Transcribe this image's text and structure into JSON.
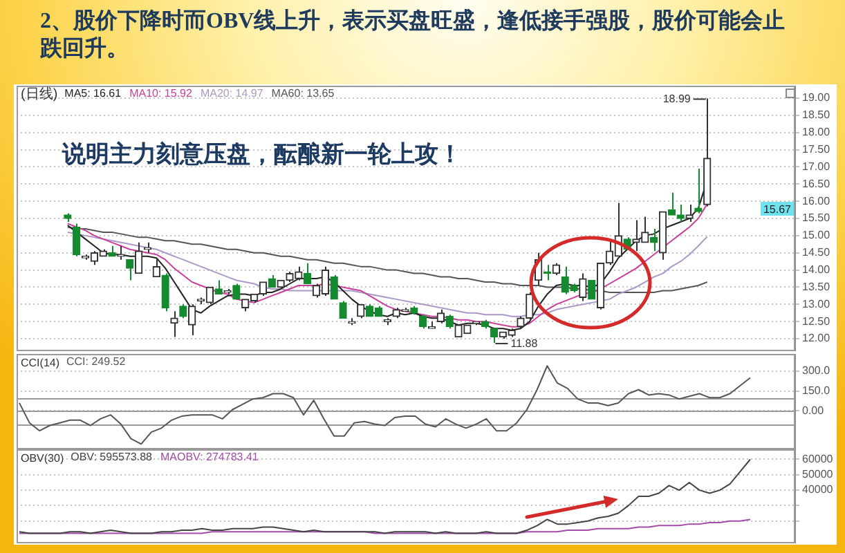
{
  "chart_data": [
    {
      "type": "candlestick",
      "title": "2、股价下降时而OBV线上升，表示买盘旺盛，逢低接手强股，股价可能会止跌回升。",
      "subtitle": "(日线)",
      "categories": [
        null,
        null,
        null,
        null,
        null,
        null,
        null,
        null,
        null,
        null,
        null,
        null,
        null,
        null,
        null,
        null,
        null,
        null,
        null,
        null,
        null,
        null,
        null,
        null,
        null,
        null,
        null,
        null,
        null,
        null,
        null,
        null,
        null,
        null,
        null,
        null,
        null,
        null,
        null,
        null,
        null,
        null,
        null,
        null,
        null,
        null,
        null,
        null,
        null,
        null,
        null,
        null,
        null,
        null,
        null,
        null,
        null,
        null,
        null,
        null,
        null,
        null,
        null,
        null,
        null,
        null,
        null,
        null,
        null,
        null,
        null,
        null,
        null
      ],
      "ohlc": [
        [
          15.6,
          15.65,
          15.4,
          15.5
        ],
        [
          15.25,
          15.35,
          14.4,
          14.45
        ],
        [
          14.35,
          14.45,
          14.3,
          14.4
        ],
        [
          14.25,
          14.55,
          14.15,
          14.5
        ],
        [
          14.4,
          14.6,
          14.4,
          14.55
        ],
        [
          14.5,
          14.7,
          14.4,
          14.4
        ],
        [
          14.4,
          14.7,
          14.3,
          14.45
        ],
        [
          14.3,
          14.3,
          13.7,
          14.05
        ],
        [
          13.9,
          14.8,
          13.9,
          14.55
        ],
        [
          14.6,
          14.8,
          14.5,
          14.65
        ],
        [
          13.8,
          14.35,
          13.8,
          14.1
        ],
        [
          13.85,
          13.9,
          12.8,
          12.9
        ],
        [
          12.45,
          12.8,
          12.05,
          12.6
        ],
        [
          12.95,
          13,
          12.6,
          12.65
        ],
        [
          12.4,
          13,
          12.1,
          12.95
        ],
        [
          13.1,
          13.2,
          13,
          13.15
        ],
        [
          13.05,
          13.5,
          13,
          13.5
        ],
        [
          13.45,
          13.7,
          13.3,
          13.3
        ],
        [
          13.35,
          13.45,
          13.3,
          13.4
        ],
        [
          13.55,
          13.6,
          13.15,
          13.15
        ],
        [
          12.9,
          13.15,
          12.8,
          13.15
        ],
        [
          13.1,
          13.3,
          13.05,
          13.3
        ],
        [
          13.3,
          13.65,
          13.25,
          13.65
        ],
        [
          13.75,
          13.85,
          13.5,
          13.5
        ],
        [
          13.5,
          13.7,
          13.45,
          13.7
        ],
        [
          13.7,
          13.95,
          13.65,
          13.9
        ],
        [
          13.75,
          14.1,
          13.7,
          13.95
        ],
        [
          13.9,
          14.2,
          13.6,
          13.6
        ],
        [
          13.25,
          13.6,
          13.2,
          13.55
        ],
        [
          13.3,
          14.1,
          13.25,
          14
        ],
        [
          13.8,
          13.85,
          13.15,
          13.15
        ],
        [
          13.05,
          13.1,
          12.6,
          12.6
        ],
        [
          12.45,
          12.6,
          12.4,
          12.5
        ],
        [
          12.65,
          13,
          12.6,
          13
        ],
        [
          12.95,
          13,
          12.65,
          12.65
        ],
        [
          12.9,
          12.95,
          12.65,
          12.65
        ],
        [
          12.5,
          12.6,
          12.4,
          12.55
        ],
        [
          12.65,
          12.9,
          12.6,
          12.85
        ],
        [
          12.8,
          12.9,
          12.8,
          12.85
        ],
        [
          12.9,
          12.95,
          12.7,
          12.75
        ],
        [
          12.65,
          12.7,
          12.3,
          12.35
        ],
        [
          12.3,
          12.5,
          12.3,
          12.35
        ],
        [
          12.5,
          12.85,
          12.45,
          12.75
        ],
        [
          12.65,
          12.7,
          12.3,
          12.35
        ],
        [
          12.05,
          12.4,
          12.05,
          12.4
        ],
        [
          12.15,
          12.4,
          12.15,
          12.4
        ],
        [
          12.45,
          12.5,
          12.4,
          12.5
        ],
        [
          12.5,
          12.55,
          12.3,
          12.35
        ],
        [
          12.3,
          12.3,
          11.88,
          12.05
        ],
        [
          12.05,
          12.2,
          12,
          12.2
        ],
        [
          12.1,
          12.3,
          12.05,
          12.25
        ],
        [
          12.35,
          12.65,
          12.3,
          12.6
        ],
        [
          12.6,
          13.35,
          12.55,
          13.3
        ],
        [
          13.7,
          14.5,
          13.55,
          14.3
        ],
        [
          13.95,
          14.15,
          13.7,
          13.9
        ],
        [
          13.9,
          14.2,
          13.85,
          14.15
        ],
        [
          13.8,
          14.1,
          13.3,
          13.35
        ],
        [
          13.55,
          13.6,
          13.35,
          13.4
        ],
        [
          13.2,
          13.9,
          13.1,
          13.75
        ],
        [
          13.7,
          13.7,
          13.15,
          13.15
        ],
        [
          12.9,
          14.2,
          12.85,
          14.2
        ],
        [
          14.2,
          14.85,
          14.15,
          14.55
        ],
        [
          14.4,
          15.95,
          14.4,
          15
        ],
        [
          14.9,
          14.95,
          14.6,
          14.6
        ],
        [
          14.8,
          15.45,
          14.55,
          14.9
        ],
        [
          14.8,
          15.55,
          14.8,
          15.1
        ],
        [
          14.95,
          15.2,
          14.55,
          14.8
        ],
        [
          14.5,
          15.7,
          14.3,
          15.7
        ],
        [
          15.75,
          16.25,
          15.6,
          15.6
        ],
        [
          15.6,
          15.9,
          15.4,
          15.5
        ],
        [
          15.5,
          15.9,
          15.4,
          15.6
        ],
        [
          15.8,
          16.95,
          15.65,
          15.7
        ],
        [
          15.9,
          18.99,
          15.85,
          17.25
        ]
      ],
      "colors": [
        "#158a2e",
        "#158a2e",
        "#333333",
        "#333333",
        "#333333",
        "#158a2e",
        "#333333",
        "#158a2e",
        "#333333",
        "#333333",
        "#333333",
        "#158a2e",
        "#333333",
        "#158a2e",
        "#333333",
        "#333333",
        "#333333",
        "#158a2e",
        "#333333",
        "#158a2e",
        "#333333",
        "#333333",
        "#333333",
        "#158a2e",
        "#333333",
        "#333333",
        "#333333",
        "#158a2e",
        "#333333",
        "#333333",
        "#158a2e",
        "#158a2e",
        "#333333",
        "#333333",
        "#158a2e",
        "#158a2e",
        "#333333",
        "#333333",
        "#333333",
        "#158a2e",
        "#158a2e",
        "#333333",
        "#333333",
        "#158a2e",
        "#333333",
        "#333333",
        "#333333",
        "#158a2e",
        "#158a2e",
        "#333333",
        "#333333",
        "#333333",
        "#333333",
        "#333333",
        "#158a2e",
        "#333333",
        "#158a2e",
        "#158a2e",
        "#333333",
        "#158a2e",
        "#333333",
        "#333333",
        "#333333",
        "#158a2e",
        "#333333",
        "#333333",
        "#158a2e",
        "#333333",
        "#158a2e",
        "#158a2e",
        "#333333",
        "#158a2e",
        "#333333"
      ],
      "series": [
        {
          "type": "line",
          "name": "MA5: 16.61",
          "color": "#222222",
          "values": [
            15.3,
            15.1,
            14.9,
            14.7,
            14.5,
            14.45,
            14.45,
            14.4,
            14.4,
            14.4,
            14.35,
            14.05,
            13.65,
            13.25,
            12.85,
            12.75,
            12.95,
            13.1,
            13.25,
            13.3,
            13.3,
            13.25,
            13.35,
            13.35,
            13.45,
            13.6,
            13.75,
            13.75,
            13.75,
            13.8,
            13.65,
            13.4,
            13.15,
            12.95,
            12.8,
            12.7,
            12.65,
            12.75,
            12.7,
            12.75,
            12.65,
            12.6,
            12.6,
            12.5,
            12.4,
            12.45,
            12.45,
            12.4,
            12.3,
            12.3,
            12.25,
            12.3,
            12.5,
            12.95,
            13.3,
            13.55,
            13.6,
            13.55,
            13.55,
            13.5,
            13.6,
            13.95,
            14.35,
            14.6,
            14.85,
            15,
            15.05,
            15.2,
            15.3,
            15.4,
            15.5,
            15.8,
            16.61
          ]
        },
        {
          "type": "line",
          "name": "MA10: 15.92",
          "color": "#c8409c",
          "values": [
            15.35,
            15.25,
            15.15,
            15,
            14.9,
            14.8,
            14.7,
            14.6,
            14.55,
            14.5,
            14.45,
            14.3,
            14.05,
            13.85,
            13.65,
            13.55,
            13.45,
            13.35,
            13.3,
            13.15,
            13.1,
            13.05,
            13.15,
            13.25,
            13.35,
            13.45,
            13.55,
            13.55,
            13.55,
            13.6,
            13.55,
            13.5,
            13.45,
            13.4,
            13.25,
            13.1,
            12.95,
            12.85,
            12.8,
            12.75,
            12.7,
            12.65,
            12.65,
            12.6,
            12.55,
            12.55,
            12.5,
            12.5,
            12.45,
            12.4,
            12.35,
            12.35,
            12.45,
            12.65,
            12.85,
            13,
            13.1,
            13.2,
            13.3,
            13.35,
            13.45,
            13.6,
            13.75,
            13.9,
            14.05,
            14.25,
            14.45,
            14.65,
            14.85,
            15.05,
            15.25,
            15.5,
            15.92
          ]
        },
        {
          "type": "line",
          "name": "MA20: 14.97",
          "color": "#ab98c8",
          "values": [
            15.1,
            15.05,
            15,
            14.95,
            14.9,
            14.85,
            14.8,
            14.75,
            14.7,
            14.65,
            14.6,
            14.5,
            14.4,
            14.3,
            14.2,
            14.1,
            14,
            13.9,
            13.8,
            13.7,
            13.65,
            13.6,
            13.5,
            13.45,
            13.45,
            13.4,
            13.4,
            13.4,
            13.4,
            13.4,
            13.4,
            13.4,
            13.4,
            13.35,
            13.3,
            13.25,
            13.2,
            13.15,
            13.1,
            13.05,
            13,
            12.95,
            12.9,
            12.85,
            12.8,
            12.75,
            12.75,
            12.7,
            12.7,
            12.7,
            12.65,
            12.65,
            12.7,
            12.7,
            12.75,
            12.85,
            12.9,
            12.95,
            13,
            13.05,
            13.1,
            13.15,
            13.3,
            13.4,
            13.5,
            13.65,
            13.8,
            13.9,
            14.1,
            14.25,
            14.45,
            14.7,
            14.97
          ]
        },
        {
          "type": "line",
          "name": "MA60: 13.65",
          "color": "#555555",
          "values": [
            15.25,
            15.2,
            15.2,
            15.15,
            15.1,
            15.1,
            15.05,
            15,
            14.95,
            14.95,
            14.9,
            14.85,
            14.85,
            14.8,
            14.75,
            14.75,
            14.7,
            14.65,
            14.6,
            14.6,
            14.55,
            14.5,
            14.5,
            14.45,
            14.4,
            14.4,
            14.35,
            14.3,
            14.3,
            14.25,
            14.2,
            14.2,
            14.15,
            14.1,
            14.1,
            14.05,
            14,
            14,
            13.95,
            13.9,
            13.9,
            13.85,
            13.8,
            13.8,
            13.75,
            13.75,
            13.7,
            13.65,
            13.65,
            13.6,
            13.6,
            13.55,
            13.55,
            13.55,
            13.5,
            13.5,
            13.5,
            13.45,
            13.45,
            13.4,
            13.4,
            13.35,
            13.35,
            13.35,
            13.35,
            13.35,
            13.35,
            13.4,
            13.4,
            13.45,
            13.5,
            13.55,
            13.65
          ]
        }
      ],
      "ylim": [
        11.64,
        19.36
      ],
      "yticks": [
        {
          "value": 12,
          "label": "12.00"
        },
        {
          "value": 12.5,
          "label": "12.50"
        },
        {
          "value": 13,
          "label": "13.00"
        },
        {
          "value": 13.5,
          "label": "13.50"
        },
        {
          "value": 14,
          "label": "14.00"
        },
        {
          "value": 14.5,
          "label": "14.50"
        },
        {
          "value": 15,
          "label": "15.00"
        },
        {
          "value": 15.5,
          "label": "15.50"
        },
        {
          "value": 16,
          "label": "16.00"
        },
        {
          "value": 16.5,
          "label": "16.50"
        },
        {
          "value": 17,
          "label": "17.00"
        },
        {
          "value": 17.5,
          "label": "17.50"
        },
        {
          "value": 18,
          "label": "18.00"
        },
        {
          "value": 18.5,
          "label": "18.50"
        },
        {
          "value": 19,
          "label": "19.00"
        }
      ],
      "grid": "y",
      "legend": "top left",
      "tick_labels": "y",
      "annotations": [
        "说明主力刻意压盘，酝酿新一轮上攻！",
        "18.99",
        "11.88",
        "15.67"
      ]
    },
    {
      "type": "line",
      "title": "CCI(14)",
      "categories": [
        null,
        null,
        null,
        null,
        null,
        null,
        null,
        null,
        null,
        null,
        null,
        null,
        null,
        null,
        null,
        null,
        null,
        null,
        null,
        null,
        null,
        null,
        null,
        null,
        null,
        null,
        null,
        null,
        null,
        null,
        null,
        null,
        null,
        null,
        null,
        null,
        null,
        null,
        null,
        null,
        null,
        null,
        null,
        null,
        null,
        null,
        null,
        null,
        null,
        null,
        null,
        null,
        null,
        null,
        null,
        null,
        null,
        null,
        null,
        null,
        null,
        null,
        null,
        null,
        null,
        null,
        null,
        null,
        null,
        null,
        null,
        null,
        null
      ],
      "series": [
        {
          "name": "CCI: 249.52",
          "color": "#555555",
          "values": [
            60,
            -90,
            -150,
            -110,
            -90,
            -70,
            -70,
            -110,
            -60,
            -30,
            -100,
            -210,
            -250,
            -160,
            -130,
            -70,
            -40,
            -30,
            -30,
            -30,
            -60,
            10,
            50,
            90,
            100,
            130,
            130,
            100,
            -30,
            80,
            -60,
            -190,
            -190,
            -90,
            -80,
            -100,
            -110,
            -50,
            -40,
            -40,
            -100,
            -120,
            -60,
            -100,
            -130,
            -100,
            -60,
            -150,
            -150,
            -90,
            10,
            160,
            340,
            210,
            170,
            90,
            60,
            60,
            40,
            60,
            130,
            160,
            120,
            130,
            120,
            90,
            110,
            130,
            100,
            100,
            130,
            190,
            250
          ]
        }
      ],
      "ylim": [
        -290,
        430
      ],
      "yticks": [
        {
          "value": 0,
          "label": "0.00"
        },
        {
          "value": 150,
          "label": "150.0"
        },
        {
          "value": 300,
          "label": "300.0"
        }
      ],
      "ref_lines": [
        {
          "axis": "y",
          "value": 100
        },
        {
          "axis": "y",
          "value": 0
        },
        {
          "axis": "y",
          "value": -100
        }
      ],
      "grid": "y",
      "legend": "top left",
      "tick_labels": "y"
    },
    {
      "type": "line",
      "title": "OBV(30)",
      "categories": [
        null,
        null,
        null,
        null,
        null,
        null,
        null,
        null,
        null,
        null,
        null,
        null,
        null,
        null,
        null,
        null,
        null,
        null,
        null,
        null,
        null,
        null,
        null,
        null,
        null,
        null,
        null,
        null,
        null,
        null,
        null,
        null,
        null,
        null,
        null,
        null,
        null,
        null,
        null,
        null,
        null,
        null,
        null,
        null,
        null,
        null,
        null,
        null,
        null,
        null,
        null,
        null,
        null,
        null,
        null,
        null,
        null,
        null,
        null,
        null,
        null,
        null,
        null,
        null,
        null,
        null,
        null,
        null,
        null,
        null,
        null,
        null,
        null
      ],
      "series": [
        {
          "name": "OBV: 595573.88",
          "color": "#444444",
          "values": [
            13000,
            12000,
            12000,
            12000,
            12000,
            13000,
            13000,
            12000,
            13000,
            14000,
            13000,
            12000,
            12000,
            12000,
            13000,
            13000,
            14000,
            14000,
            15000,
            14000,
            14000,
            15000,
            15000,
            15000,
            16000,
            16000,
            15000,
            14000,
            13000,
            14000,
            13000,
            13000,
            13000,
            13000,
            13000,
            13000,
            12000,
            13000,
            13000,
            13000,
            13000,
            12000,
            13000,
            12000,
            12000,
            12000,
            13000,
            12000,
            12000,
            12000,
            14000,
            17000,
            21000,
            18000,
            18000,
            19000,
            20000,
            22000,
            23000,
            25000,
            30000,
            36000,
            36000,
            38000,
            43000,
            40000,
            45000,
            40000,
            38000,
            40000,
            44000,
            52000,
            60000
          ]
        },
        {
          "name": "MAOBV: 274783.41",
          "color": "#a04ca8",
          "values": [
            12000,
            12000,
            12000,
            12000,
            12000,
            12000,
            12000,
            12000,
            12000,
            12000,
            12000,
            12000,
            12000,
            12000,
            12000,
            12000,
            12000,
            12000,
            12000,
            13000,
            13000,
            13000,
            13000,
            13000,
            13000,
            13000,
            13000,
            13000,
            13000,
            13000,
            13000,
            13000,
            13000,
            13000,
            13000,
            12000,
            12000,
            12000,
            12000,
            12000,
            12000,
            12000,
            12000,
            12000,
            12000,
            12000,
            12000,
            12000,
            12000,
            12000,
            13000,
            13000,
            13000,
            13000,
            14000,
            14000,
            14000,
            15000,
            15000,
            15000,
            15000,
            16000,
            16000,
            17000,
            17000,
            17000,
            18000,
            18000,
            19000,
            19000,
            20000,
            20000,
            21000
          ]
        }
      ],
      "ylim": [
        5500,
        66500
      ],
      "yticks": [
        {
          "value": 20000,
          "label": null
        },
        {
          "value": 30000,
          "label": null
        },
        40000,
        50000,
        60000
      ],
      "grid": "y",
      "legend": "top left",
      "tick_labels": "y"
    }
  ]
}
